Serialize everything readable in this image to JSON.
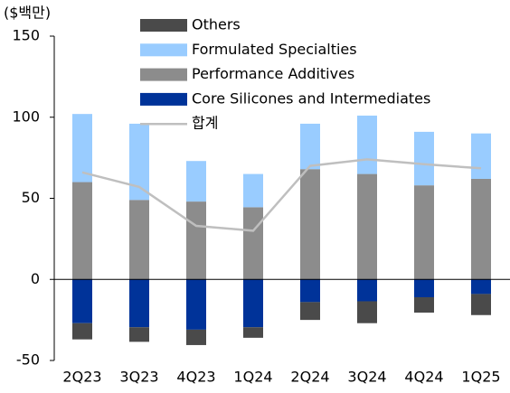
{
  "chart_data": {
    "type": "bar",
    "unit_label": "($백만)",
    "categories": [
      "2Q23",
      "3Q23",
      "4Q23",
      "1Q24",
      "2Q24",
      "3Q24",
      "4Q24",
      "1Q25"
    ],
    "series": [
      {
        "name": "Others",
        "color": "#4a4a4a",
        "values": [
          -10,
          -9,
          -9.5,
          -6.5,
          -11,
          -13.5,
          -9.5,
          -13
        ]
      },
      {
        "name": "Formulated Specialties",
        "color": "#99ccff",
        "values": [
          42,
          47,
          25,
          20.5,
          28,
          36,
          33,
          28
        ]
      },
      {
        "name": "Performance Additives",
        "color": "#8c8c8c",
        "values": [
          60,
          49,
          48,
          44.5,
          68,
          65,
          58,
          62
        ]
      },
      {
        "name": "Core Silicones and Intermediates",
        "color": "#003399",
        "values": [
          -27,
          -29.5,
          -31,
          -29.5,
          -14,
          -13.5,
          -11,
          -9
        ]
      },
      {
        "name": "합계",
        "type": "line",
        "color": "#bfbfbf",
        "values": [
          66,
          57,
          33,
          30,
          70,
          74,
          71,
          68.5
        ]
      }
    ],
    "ylim": [
      -50,
      150
    ],
    "yticks": [
      -50,
      0,
      50,
      100,
      150
    ],
    "grid": false,
    "legend": "top-left"
  }
}
